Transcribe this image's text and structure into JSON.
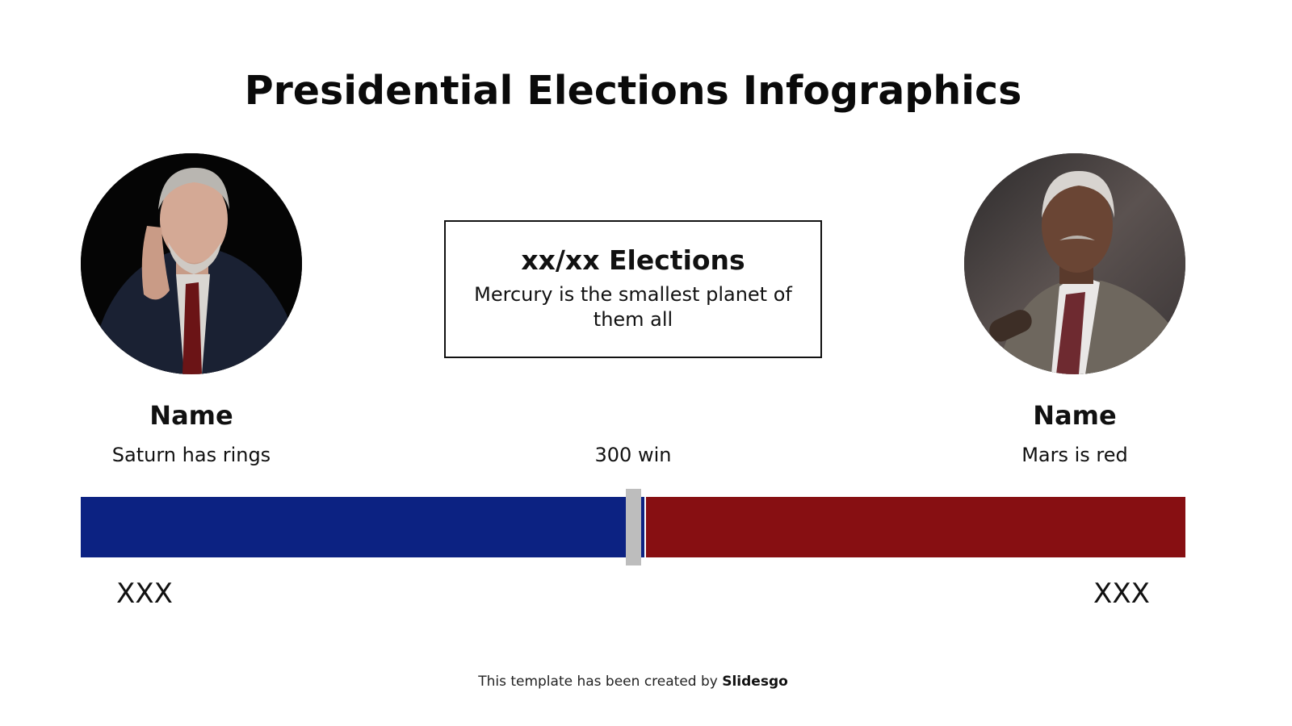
{
  "slide": {
    "title": "Presidential Elections Infographics",
    "info_box": {
      "heading": "xx/xx Elections",
      "text": "Mercury is the smallest planet of them all"
    },
    "threshold_label": "300 win",
    "candidates": [
      {
        "side": "left",
        "name": "Name",
        "description": "Saturn has rings",
        "votes": "XXX",
        "color": "#0c2282",
        "photo": "portrait-older-man-dark-suit-red-tie-black-background"
      },
      {
        "side": "right",
        "name": "Name",
        "description": "Mars is red",
        "votes": "XXX",
        "color": "#870f12",
        "photo": "portrait-older-man-grey-suit-at-microphone"
      }
    ],
    "bar": {
      "left_share_percent": 51,
      "right_share_percent": 49,
      "marker_color": "#bdbdbd"
    },
    "footer": {
      "prefix": "This template has been created by ",
      "brand": "Slidesgo"
    }
  }
}
